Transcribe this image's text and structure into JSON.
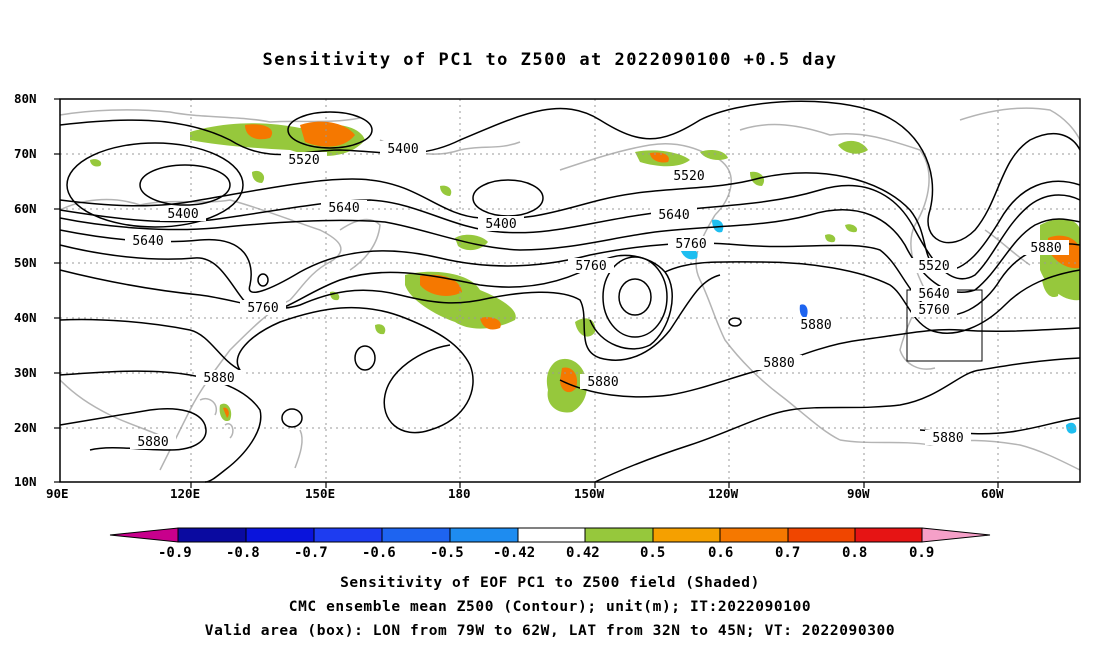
{
  "title": "Sensitivity of PC1 to Z500 at 2022090100 +0.5 day",
  "map": {
    "lat_labels": [
      "80N",
      "70N",
      "60N",
      "50N",
      "40N",
      "30N",
      "20N",
      "10N"
    ],
    "lon_labels": [
      "90E",
      "120E",
      "150E",
      "180",
      "150W",
      "120W",
      "90W",
      "60W"
    ],
    "contour_labels": [
      "5400",
      "5520",
      "5640",
      "5760",
      "5880"
    ],
    "box": {
      "lon_from": "79W",
      "lon_to": "62W",
      "lat_from": "32N",
      "lat_to": "45N"
    }
  },
  "colorbar": {
    "ticks": [
      "-0.9",
      "-0.8",
      "-0.7",
      "-0.6",
      "-0.5",
      "-0.42",
      "0.42",
      "0.5",
      "0.6",
      "0.7",
      "0.8",
      "0.9"
    ],
    "colors": [
      "#c8008c",
      "#0a0aa0",
      "#0a14dc",
      "#1e3cf0",
      "#1e64f0",
      "#1e8cf0",
      "#1ebef0",
      "#ffffff",
      "#96c83c",
      "#f5a000",
      "#f57800",
      "#f04600",
      "#e61414",
      "#f5a0c8"
    ]
  },
  "captions": [
    "Sensitivity of EOF PC1 to Z500 field (Shaded)",
    "CMC ensemble mean Z500 (Contour); unit(m); IT:2022090100",
    "Valid area (box): LON from 79W to 62W, LAT from 32N to 45N; VT: 2022090300"
  ]
}
